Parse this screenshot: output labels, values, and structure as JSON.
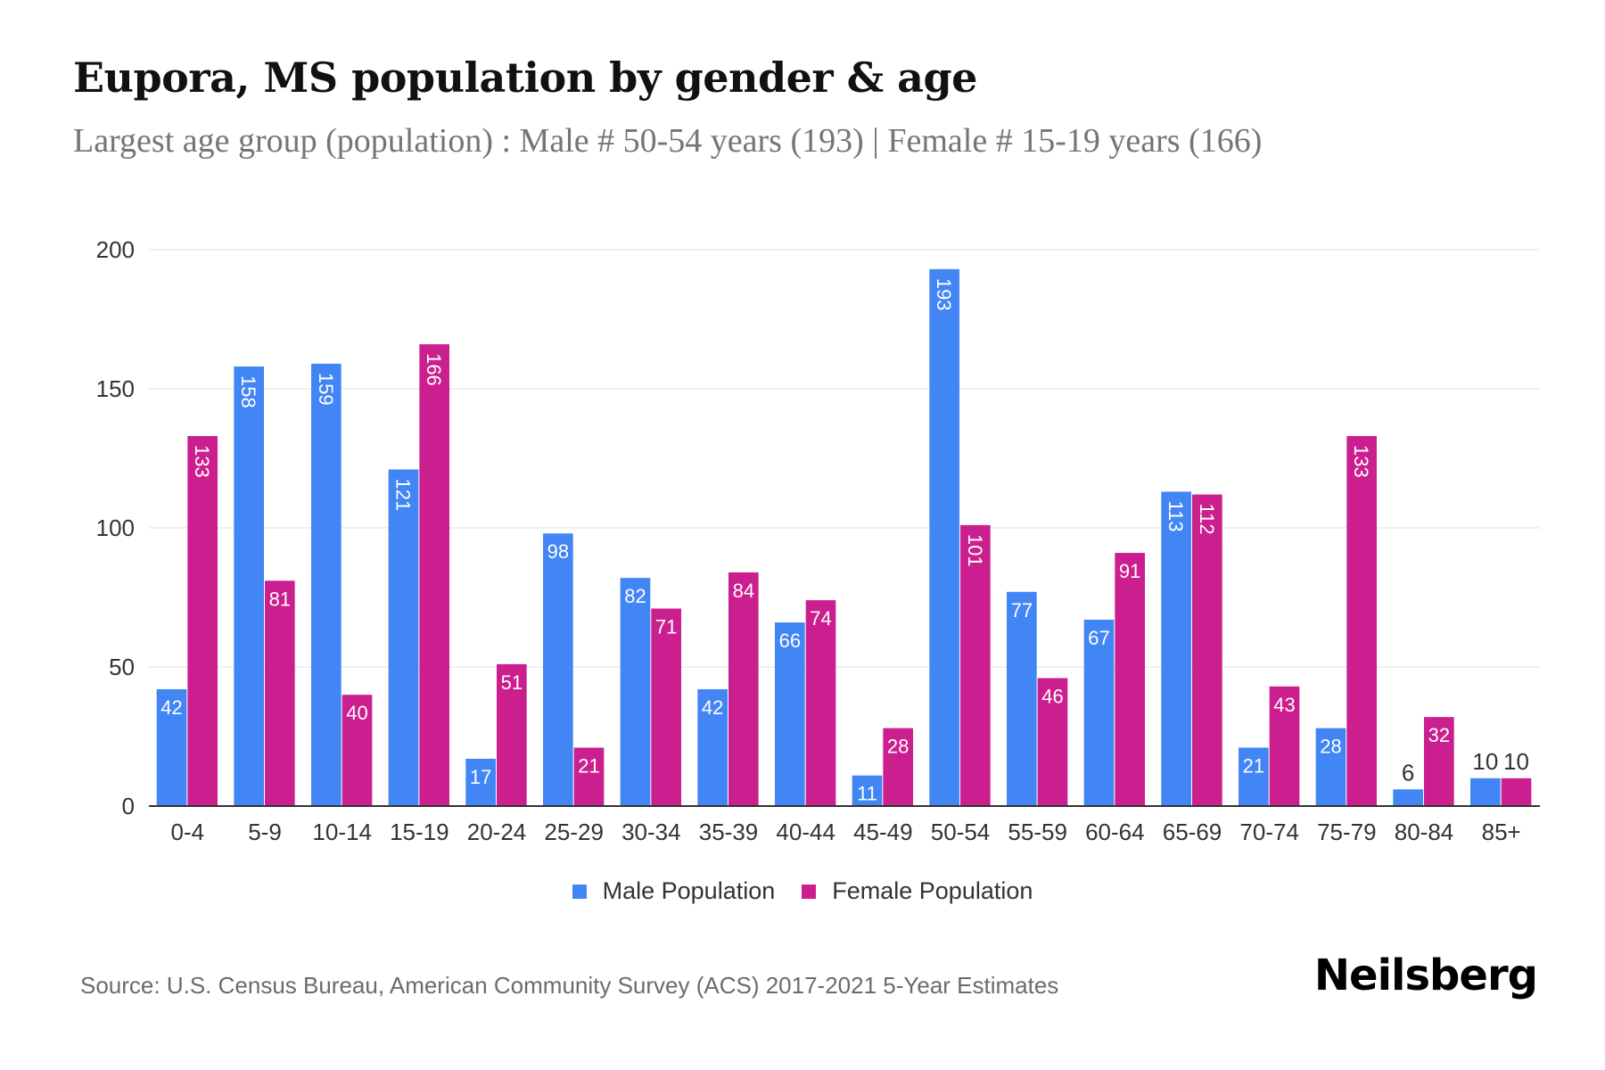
{
  "header": {
    "title": "Eupora, MS population by gender & age",
    "subtitle": "Largest age group (population) : Male # 50-54 years (193) | Female # 15-19 years (166)"
  },
  "legend": {
    "items": [
      {
        "label": "Male Population",
        "color": "#4285F4"
      },
      {
        "label": "Female Population",
        "color": "#CC1F8F"
      }
    ]
  },
  "footer": {
    "source": "Source: U.S. Census Bureau, American Community Survey (ACS) 2017-2021 5-Year Estimates",
    "brand": "Neilsberg"
  },
  "chart_data": {
    "type": "bar",
    "title": "Eupora, MS population by gender & age",
    "subtitle": "Largest age group (population) : Male # 50-54 years (193) | Female # 15-19 years (166)",
    "xlabel": "",
    "ylabel": "",
    "ylim": [
      0,
      200
    ],
    "yticks": [
      0,
      50,
      100,
      150,
      200
    ],
    "grid": true,
    "legend_position": "bottom",
    "categories": [
      "0-4",
      "5-9",
      "10-14",
      "15-19",
      "20-24",
      "25-29",
      "30-34",
      "35-39",
      "40-44",
      "45-49",
      "50-54",
      "55-59",
      "60-64",
      "65-69",
      "70-74",
      "75-79",
      "80-84",
      "85+"
    ],
    "series": [
      {
        "name": "Male Population",
        "color": "#4285F4",
        "values": [
          42,
          158,
          159,
          121,
          17,
          98,
          82,
          42,
          66,
          11,
          193,
          77,
          67,
          113,
          21,
          28,
          6,
          10
        ]
      },
      {
        "name": "Female Population",
        "color": "#CC1F8F",
        "values": [
          133,
          81,
          40,
          166,
          51,
          21,
          71,
          84,
          74,
          28,
          101,
          46,
          91,
          112,
          43,
          133,
          32,
          10
        ]
      }
    ]
  }
}
